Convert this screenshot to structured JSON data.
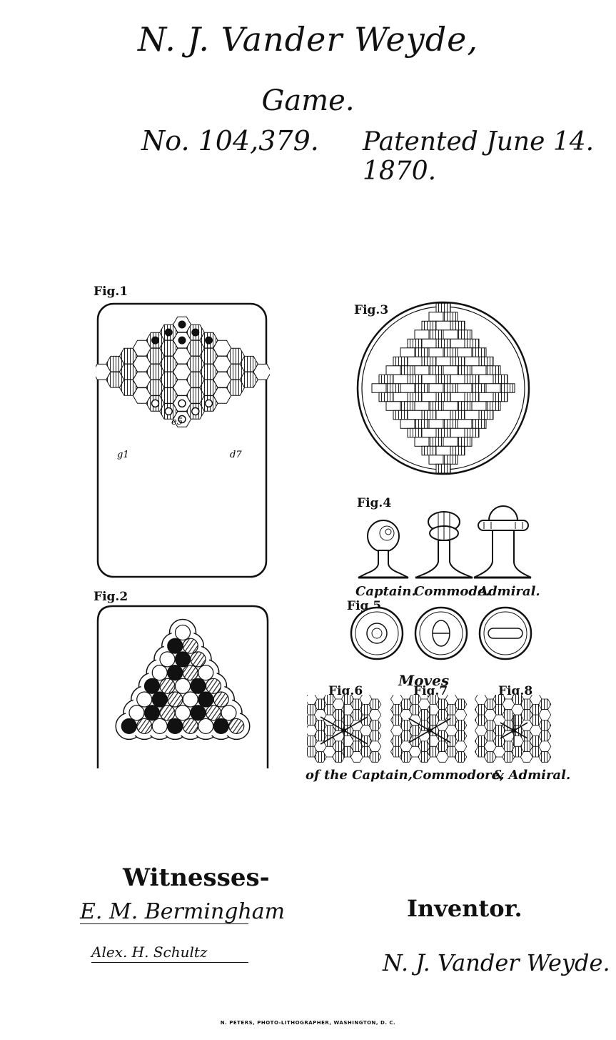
{
  "header": {
    "inventor_name": "N. J. Vander Weyde,",
    "subject": "Game.",
    "patent_number": "No. 104,379.",
    "patented_date": "Patented June 14. 1870."
  },
  "figures": {
    "fig1": "Fig.1",
    "fig2": "Fig.2",
    "fig3": "Fig.3",
    "fig4": "Fig.4",
    "fig5": "Fig.5",
    "fig6": "Fig.6",
    "fig7": "Fig.7",
    "fig8": "Fig.8"
  },
  "board_labels": {
    "e5": "e5",
    "g1": "g1",
    "d7": "d7"
  },
  "fig4_captions": {
    "captain": "Captain.",
    "commode": "Commode.",
    "admiral": "Admiral."
  },
  "moves": {
    "heading": "Moves",
    "caption_captain": "of the Captain,",
    "caption_commodore": "Commodore,",
    "caption_admiral": "& Admiral."
  },
  "signatures": {
    "witnesses_heading": "Witnesses-",
    "witness1": "E. M. Bermingham",
    "witness2": "Alex. H. Schultz",
    "inventor_heading": "Inventor.",
    "inventor_signature": "N. J. Vander Weyde."
  },
  "footer": "N. PETERS, PHOTO-LITHOGRAPHER, WASHINGTON, D. C."
}
